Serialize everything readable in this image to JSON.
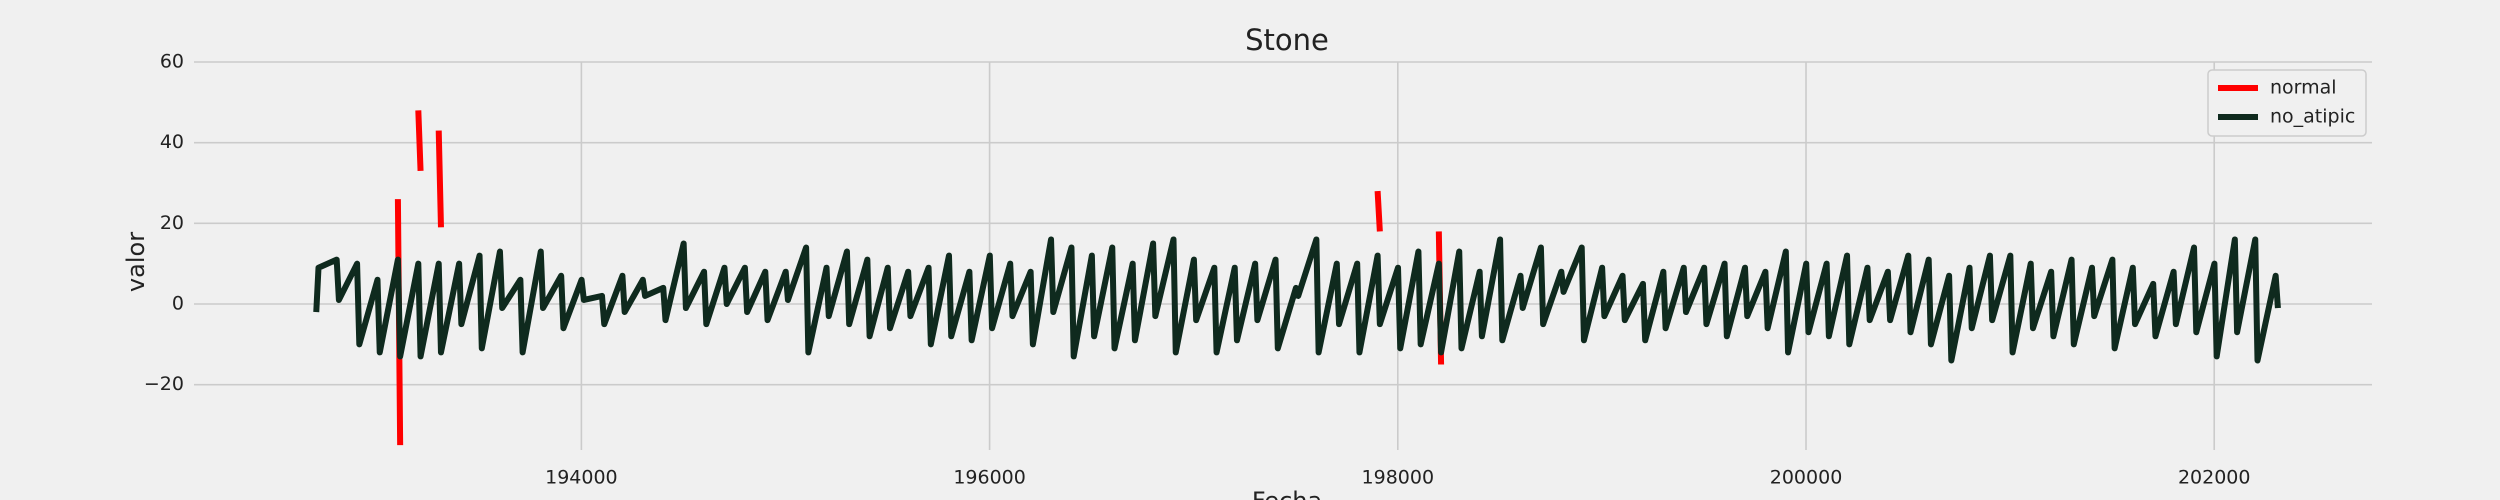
{
  "chart_data": {
    "type": "line",
    "title": "Stone",
    "xlabel": "Fecha",
    "ylabel": "valor",
    "xlim": [
      192102,
      202773
    ],
    "ylim": [
      -36.2,
      60
    ],
    "xticks": [
      194000,
      196000,
      198000,
      200000,
      202000
    ],
    "yticks": [
      {
        "value": -20,
        "label": "−20"
      },
      0,
      20,
      40,
      60
    ],
    "grid": true,
    "legend": "upper right",
    "series": [
      {
        "name": "normal",
        "color": "#ff0000",
        "x": [
          193101,
          193112,
          193150,
          193201,
          193212,
          193250,
          193301,
          193312,
          193350,
          197901,
          197912,
          197950,
          198201,
          198212
        ],
        "values": [
          26,
          -35,
          null,
          48,
          33,
          null,
          43,
          19,
          null,
          28,
          18,
          null,
          18,
          -15
        ]
      },
      {
        "name": "no_atipic",
        "color": "#0f2a1e",
        "x": [
          192701,
          192712,
          192801,
          192812,
          192901,
          192912,
          193001,
          193012,
          193101,
          193112,
          193201,
          193212,
          193301,
          193312,
          193401,
          193412,
          193501,
          193512,
          193601,
          193612,
          193701,
          193712,
          193801,
          193812,
          193901,
          193912,
          194001,
          194012,
          194101,
          194112,
          194201,
          194212,
          194301,
          194312,
          194401,
          194412,
          194501,
          194512,
          194601,
          194612,
          194701,
          194712,
          194801,
          194812,
          194901,
          194912,
          195001,
          195012,
          195101,
          195112,
          195201,
          195212,
          195301,
          195312,
          195401,
          195412,
          195501,
          195512,
          195601,
          195612,
          195701,
          195712,
          195801,
          195812,
          195901,
          195912,
          196001,
          196012,
          196101,
          196112,
          196201,
          196212,
          196301,
          196312,
          196401,
          196412,
          196501,
          196512,
          196601,
          196612,
          196701,
          196712,
          196801,
          196812,
          196901,
          196912,
          197001,
          197012,
          197101,
          197112,
          197201,
          197212,
          197301,
          197312,
          197401,
          197412,
          197501,
          197512,
          197601,
          197612,
          197701,
          197712,
          197801,
          197812,
          197901,
          197912,
          198001,
          198012,
          198101,
          198112,
          198201,
          198212,
          198301,
          198312,
          198401,
          198412,
          198501,
          198512,
          198601,
          198612,
          198701,
          198712,
          198801,
          198812,
          198901,
          198912,
          199001,
          199012,
          199101,
          199112,
          199201,
          199212,
          199301,
          199312,
          199401,
          199412,
          199501,
          199512,
          199601,
          199612,
          199701,
          199712,
          199801,
          199812,
          199901,
          199912,
          200001,
          200012,
          200101,
          200112,
          200201,
          200212,
          200301,
          200312,
          200401,
          200412,
          200501,
          200512,
          200601,
          200612,
          200701,
          200712,
          200801,
          200812,
          200901,
          200912,
          201001,
          201012,
          201101,
          201112,
          201201,
          201212,
          201301,
          201312,
          201401,
          201412,
          201501,
          201512,
          201601,
          201612,
          201701,
          201712,
          201801,
          201812,
          201901,
          201912,
          202001,
          202012,
          202101,
          202112,
          202201,
          202212,
          202301,
          202312
        ],
        "values": [
          -2,
          9,
          11,
          1,
          10,
          -10,
          6,
          -12,
          11,
          -13,
          10,
          -13,
          10,
          -12,
          10,
          -5,
          12,
          -11,
          13,
          -1,
          6,
          -12,
          13,
          -1,
          7,
          -6,
          6,
          1,
          2,
          -5,
          7,
          -2,
          6,
          2,
          4,
          -4,
          15,
          -1,
          8,
          -5,
          9,
          0,
          9,
          -2,
          8,
          -4,
          8,
          1,
          14,
          -12,
          9,
          -3,
          13,
          -5,
          11,
          -8,
          9,
          -6,
          8,
          -3,
          9,
          -10,
          12,
          -8,
          8,
          -9,
          12,
          -6,
          10,
          -3,
          8,
          -10,
          16,
          -2,
          14,
          -13,
          12,
          -8,
          14,
          -11,
          10,
          -9,
          15,
          -3,
          16,
          -12,
          11,
          -4,
          9,
          -12,
          9,
          -9,
          10,
          -4,
          11,
          -11,
          4,
          2,
          16,
          -12,
          10,
          -5,
          10,
          -12,
          12,
          -5,
          9,
          -11,
          13,
          -10,
          10,
          -12,
          13,
          -11,
          8,
          -8,
          16,
          -9,
          7,
          -1,
          14,
          -5,
          8,
          3,
          14,
          -9,
          9,
          -3,
          7,
          -4,
          5,
          -9,
          8,
          -6,
          9,
          -2,
          9,
          -5,
          10,
          -8,
          9,
          -3,
          8,
          -6,
          13,
          -12,
          10,
          -7,
          10,
          -8,
          12,
          -10,
          9,
          -4,
          8,
          -4,
          12,
          -7,
          11,
          -10,
          7,
          -14,
          9,
          -6,
          12,
          -4,
          12,
          -12,
          10,
          -6,
          8,
          -8,
          11,
          -10,
          9,
          -3,
          11,
          -11,
          9,
          -5,
          5,
          -8,
          8,
          -5,
          14,
          -7,
          10,
          -13,
          16,
          -7,
          16,
          -14,
          7,
          -1
        ]
      }
    ]
  }
}
